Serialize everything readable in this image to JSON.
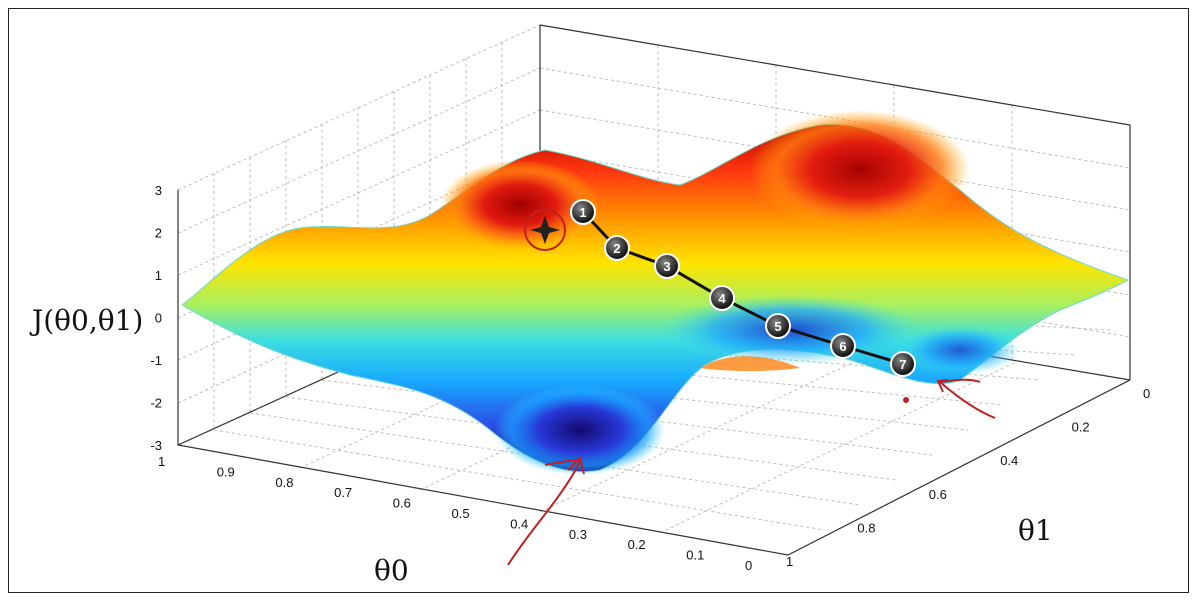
{
  "chart_data": {
    "type": "surface",
    "zlabel": "J(θ0,θ1)",
    "xlabel": "θ0",
    "ylabel": "θ1",
    "z_ticks": [
      "3",
      "2",
      "1",
      "0",
      "-1",
      "-2",
      "-3"
    ],
    "theta0_ticks": [
      "1",
      "0.9",
      "0.8",
      "0.7",
      "0.6",
      "0.5",
      "0.4",
      "0.3",
      "0.2",
      "0.1",
      "0"
    ],
    "theta1_ticks": [
      "0",
      "0.2",
      "0.4",
      "0.6",
      "0.8",
      "1"
    ],
    "zlim": [
      -3,
      3
    ],
    "theta0_range": [
      1,
      0
    ],
    "theta1_range": [
      0,
      1
    ],
    "gradient_steps": [
      {
        "label": "1"
      },
      {
        "label": "2"
      },
      {
        "label": "3"
      },
      {
        "label": "4"
      },
      {
        "label": "5"
      },
      {
        "label": "6"
      },
      {
        "label": "7"
      }
    ],
    "colormap": [
      "#0a0a8c",
      "#1a4cff",
      "#00c8ff",
      "#40f0d0",
      "#a8f060",
      "#ffe000",
      "#ff8c00",
      "#e01010",
      "#900000"
    ],
    "path_color": "#111111",
    "annotation_color": "#c02020"
  }
}
